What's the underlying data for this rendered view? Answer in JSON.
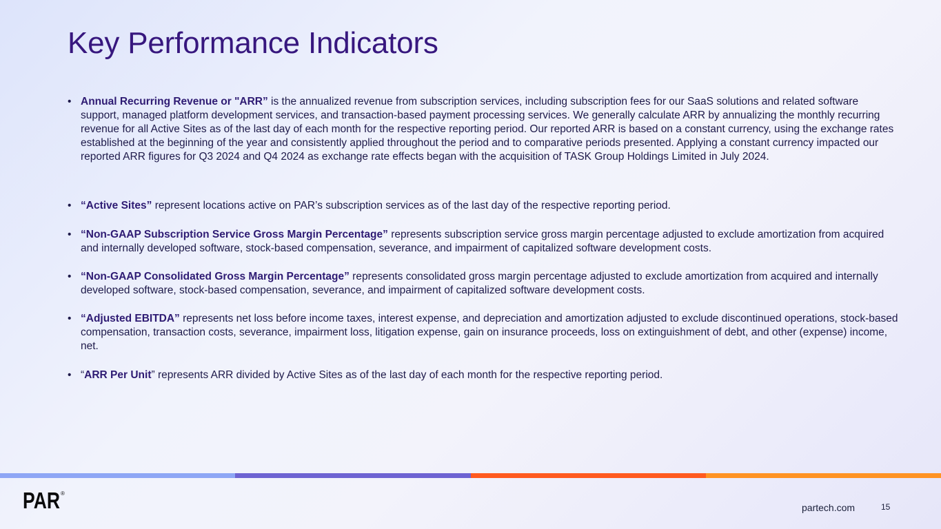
{
  "slide": {
    "title": "Key Performance Indicators",
    "page_number": "15"
  },
  "bullet_glyph": "•",
  "bullets": [
    {
      "pre": "",
      "term": "Annual Recurring Revenue or \"ARR”",
      "post": " is the annualized revenue from subscription services, including subscription fees for our SaaS solutions and related software support, managed platform development services, and transaction-based payment processing services. We generally calculate ARR by annualizing the monthly recurring revenue for all Active Sites as of the last day of each month for the respective reporting period. Our reported ARR is based on a constant currency, using the exchange rates established at the beginning of the year and consistently applied throughout the period and to comparative periods presented. Applying a constant currency impacted our reported ARR figures for Q3 2024 and Q4 2024 as exchange rate effects began with the acquisition of TASK Group Holdings Limited in July 2024."
    },
    {
      "pre": "",
      "term": "“Active Sites”",
      "post": " represent locations active on PAR’s subscription services as of the last day of the respective reporting period."
    },
    {
      "pre": "",
      "term": "“Non-GAAP Subscription Service Gross Margin Percentage”",
      "post": " represents subscription service gross margin percentage adjusted to exclude amortization from acquired and internally developed software, stock-based compensation, severance, and impairment of capitalized software development costs."
    },
    {
      "pre": "",
      "term": "“Non-GAAP Consolidated Gross Margin Percentage”",
      "post": " represents consolidated gross margin percentage adjusted to exclude amortization from acquired and internally developed software, stock-based compensation, severance, and impairment of capitalized software development costs."
    },
    {
      "pre": "",
      "term": "“Adjusted EBITDA”",
      "post": " represents net loss before income taxes, interest expense, and depreciation and amortization adjusted to exclude discontinued operations, stock-based compensation, transaction costs, severance, impairment loss, litigation expense, gain on insurance proceeds, loss on extinguishment of debt, and other (expense) income, net."
    },
    {
      "pre": "“",
      "term": "ARR Per Unit",
      "post": "” represents ARR divided by Active Sites as of the last day of each month for the respective reporting period."
    }
  ],
  "stripe_colors": [
    "#8ea6f5",
    "#6e63d2",
    "#ff5a1f",
    "#ff9323"
  ],
  "footer": {
    "logo_text": "PAR",
    "logo_mark": "®",
    "website": "partech.com"
  },
  "colors": {
    "title": "#37177e",
    "bold_term": "#2e1b73",
    "body_text": "#1e1a4a"
  }
}
